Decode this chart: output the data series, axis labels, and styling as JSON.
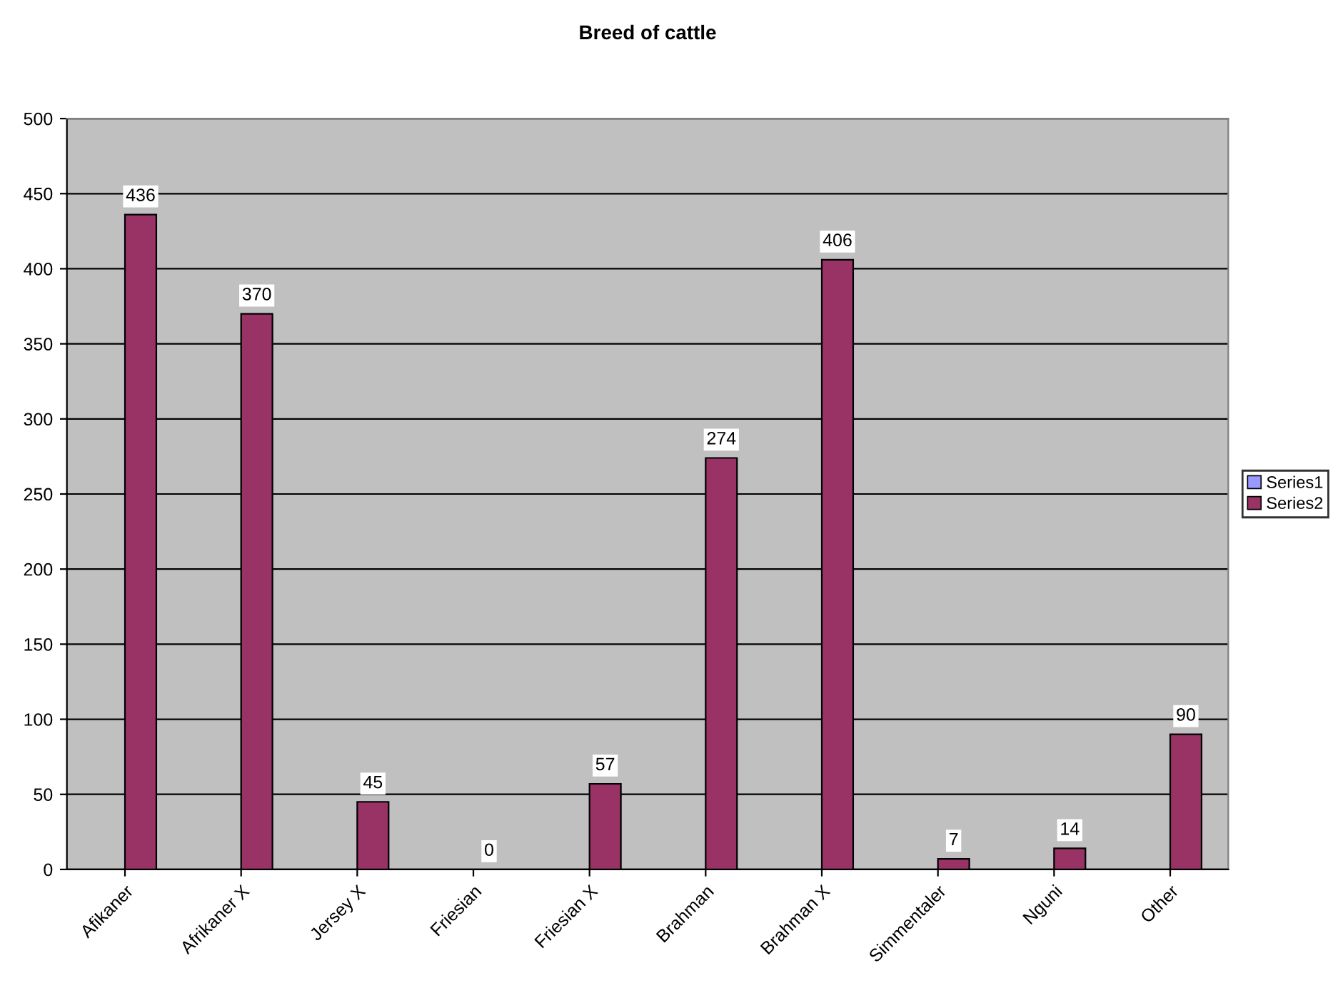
{
  "chart_data": {
    "type": "bar",
    "title": "Breed of cattle",
    "categories": [
      "Afikaner",
      "Afrikaner X",
      "Jersey X",
      "Friesian",
      "Friesian X",
      "Brahman",
      "Brahman X",
      "Simmentaler",
      "Nguni",
      "Other"
    ],
    "series": [
      {
        "name": "Series1",
        "color": "#9999ff",
        "values": [
          null,
          null,
          null,
          null,
          null,
          null,
          null,
          null,
          null,
          null
        ]
      },
      {
        "name": "Series2",
        "color": "#993366",
        "values": [
          436,
          370,
          45,
          0,
          57,
          274,
          406,
          7,
          14,
          90
        ]
      }
    ],
    "ylim": [
      0,
      500
    ],
    "yticks": [
      0,
      50,
      100,
      150,
      200,
      250,
      300,
      350,
      400,
      450,
      500
    ],
    "grid": "y",
    "legend": "right",
    "data_labels": true
  }
}
